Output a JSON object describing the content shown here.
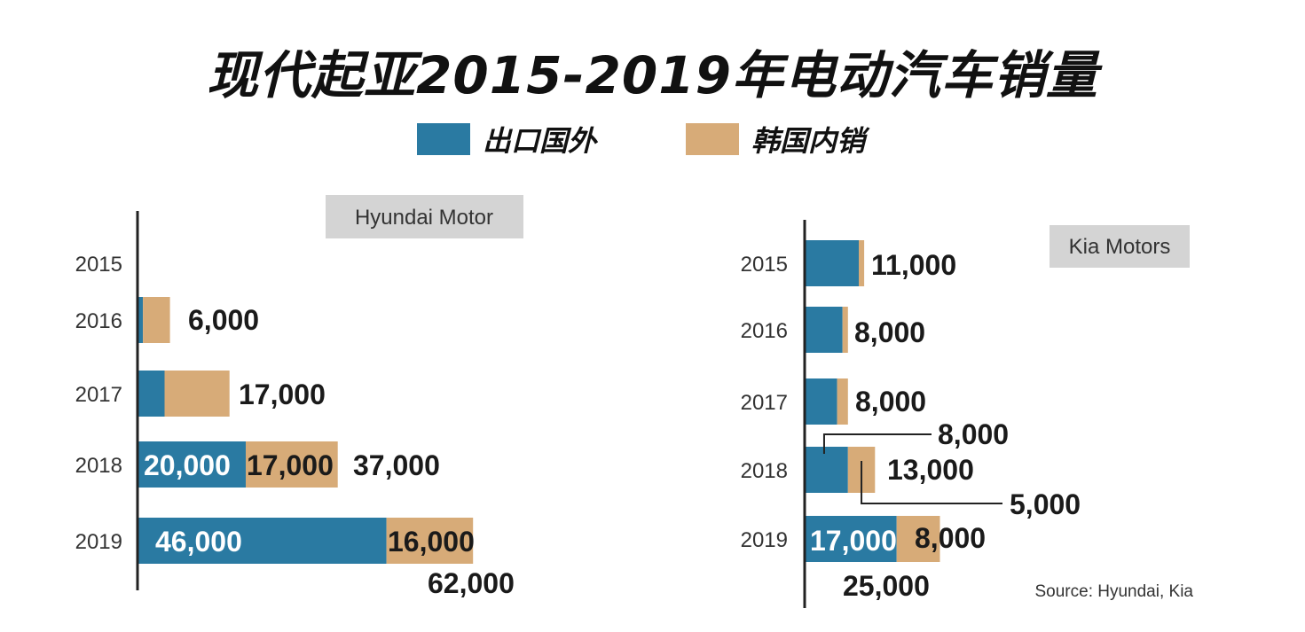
{
  "title": "现代起亚2015-2019年电动汽车销量",
  "legend": [
    {
      "label": "出口国外",
      "color": "#2a7aa2"
    },
    {
      "label": "韩国内销",
      "color": "#d7ab78"
    }
  ],
  "source": "Source: Hyundai, Kia",
  "chart_data": [
    {
      "type": "bar",
      "orientation": "horizontal",
      "stacked": true,
      "title": "Hyundai Motor",
      "categories": [
        "2015",
        "2016",
        "2017",
        "2018",
        "2019"
      ],
      "series": [
        {
          "name": "出口国外",
          "values": [
            0,
            1000,
            5000,
            20000,
            46000
          ]
        },
        {
          "name": "韩国内销",
          "values": [
            0,
            5000,
            12000,
            17000,
            16000
          ]
        }
      ],
      "totals": [
        "",
        "6,000",
        "17,000",
        "37,000",
        "62,000"
      ],
      "segment_labels": [
        {
          "category": "2018",
          "series": 0,
          "text": "20,000"
        },
        {
          "category": "2018",
          "series": 1,
          "text": "17,000"
        },
        {
          "category": "2019",
          "series": 0,
          "text": "46,000"
        },
        {
          "category": "2019",
          "series": 1,
          "text": "16,000"
        }
      ]
    },
    {
      "type": "bar",
      "orientation": "horizontal",
      "stacked": true,
      "title": "Kia Motors",
      "categories": [
        "2015",
        "2016",
        "2017",
        "2018",
        "2019"
      ],
      "series": [
        {
          "name": "出口国外",
          "values": [
            10000,
            7000,
            6000,
            8000,
            17000
          ]
        },
        {
          "name": "韩国内销",
          "values": [
            1000,
            1000,
            2000,
            5000,
            8000
          ]
        }
      ],
      "totals": [
        "11,000",
        "8,000",
        "8,000",
        "13,000",
        "25,000"
      ],
      "segment_labels": [
        {
          "category": "2018",
          "series": 0,
          "text": "8,000",
          "callout": true
        },
        {
          "category": "2018",
          "series": 1,
          "text": "5,000",
          "callout": true
        },
        {
          "category": "2019",
          "series": 0,
          "text": "17,000"
        },
        {
          "category": "2019",
          "series": 1,
          "text": "8,000"
        }
      ]
    }
  ]
}
